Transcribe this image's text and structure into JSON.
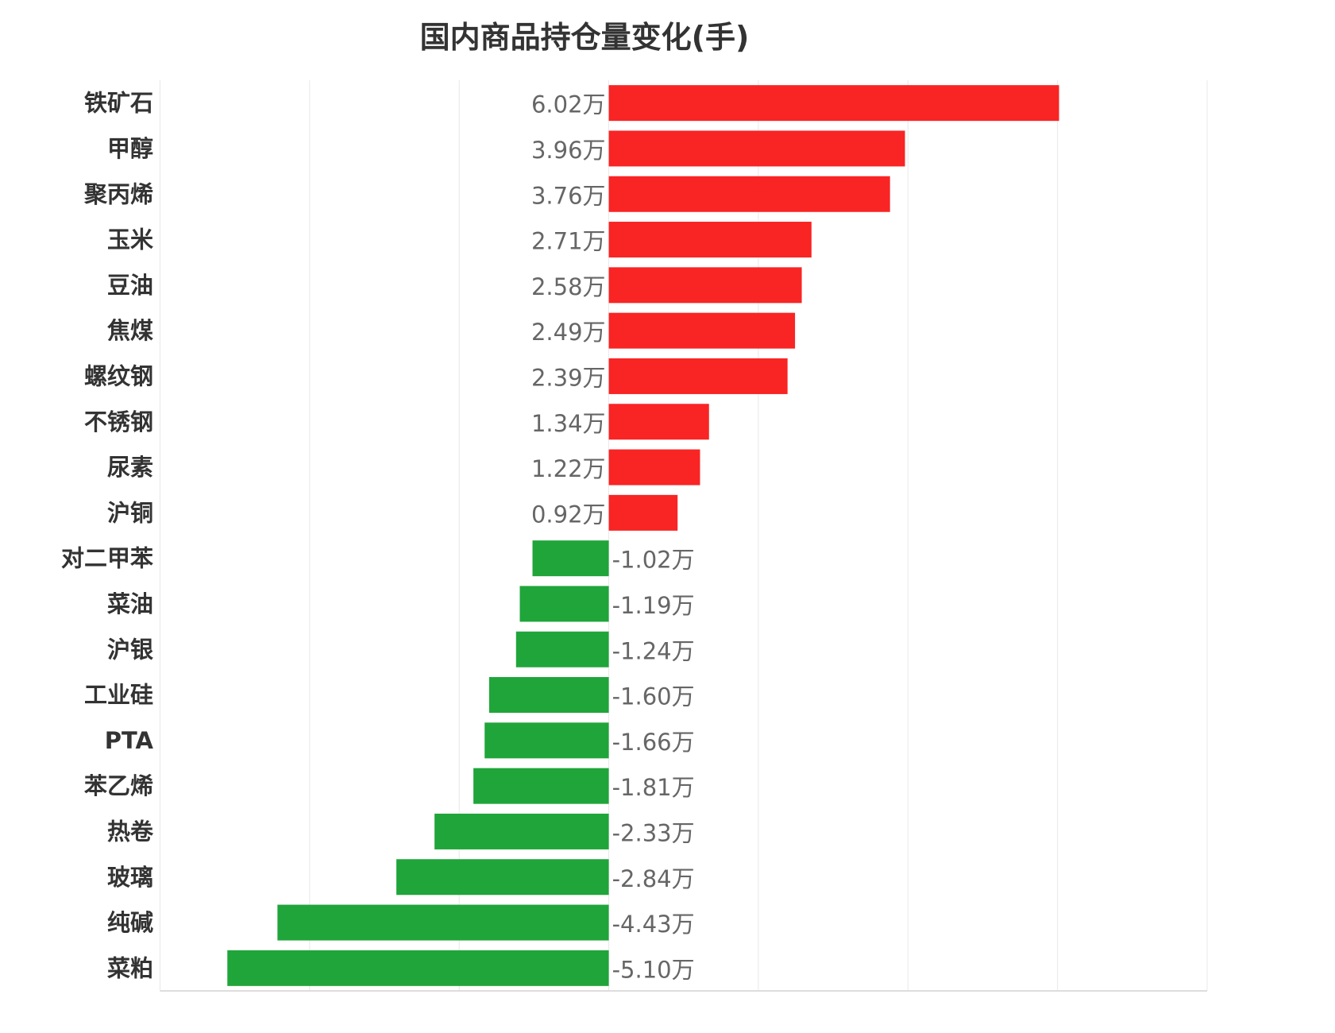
{
  "chart_data": {
    "type": "bar",
    "orientation": "horizontal",
    "title": "国内商品持仓量变化(手)",
    "categories": [
      "铁矿石",
      "甲醇",
      "聚丙烯",
      "玉米",
      "豆油",
      "焦煤",
      "螺纹钢",
      "不锈钢",
      "尿素",
      "沪铜",
      "对二甲苯",
      "菜油",
      "沪银",
      "工业硅",
      "PTA",
      "苯乙烯",
      "热卷",
      "玻璃",
      "纯碱",
      "菜粕"
    ],
    "values": [
      6.02,
      3.96,
      3.76,
      2.71,
      2.58,
      2.49,
      2.39,
      1.34,
      1.22,
      0.92,
      -1.02,
      -1.19,
      -1.24,
      -1.6,
      -1.66,
      -1.81,
      -2.33,
      -2.84,
      -4.43,
      -5.1
    ],
    "labels": [
      "6.02万",
      "3.96万",
      "3.76万",
      "2.71万",
      "2.58万",
      "2.49万",
      "2.39万",
      "1.34万",
      "1.22万",
      "0.92万",
      "-1.02万",
      "-1.19万",
      "-1.24万",
      "-1.60万",
      "-1.66万",
      "-1.81万",
      "-2.33万",
      "-2.84万",
      "-4.43万",
      "-5.10万"
    ],
    "unit": "万",
    "xlim": [
      -6,
      8
    ],
    "grid": true,
    "colors": {
      "positive": "#f92424",
      "negative": "#20a53a"
    }
  }
}
